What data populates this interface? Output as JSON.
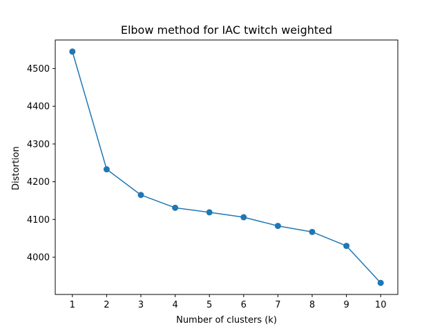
{
  "chart_data": {
    "type": "line",
    "title": "Elbow method for IAC twitch weighted",
    "xlabel": "Number of clusters (k)",
    "ylabel": "Distortion",
    "x": [
      1,
      2,
      3,
      4,
      5,
      6,
      7,
      8,
      9,
      10
    ],
    "series": [
      {
        "values": [
          4545,
          4233,
          4165,
          4131,
          4119,
          4106,
          4083,
          4067,
          4030,
          3932
        ],
        "color": "#1f77b4",
        "marker": "circle"
      }
    ],
    "xticks": [
      "1",
      "2",
      "3",
      "4",
      "5",
      "6",
      "7",
      "8",
      "9",
      "10"
    ],
    "yticks": [
      4000,
      4100,
      4200,
      4300,
      4400,
      4500
    ],
    "ytick_labels": [
      "4000",
      "4100",
      "4200",
      "4300",
      "4400",
      "4500"
    ],
    "xlim": [
      0.5,
      10.5
    ],
    "ylim": [
      3901.35,
      4575.65
    ],
    "grid": false,
    "legend": false
  }
}
